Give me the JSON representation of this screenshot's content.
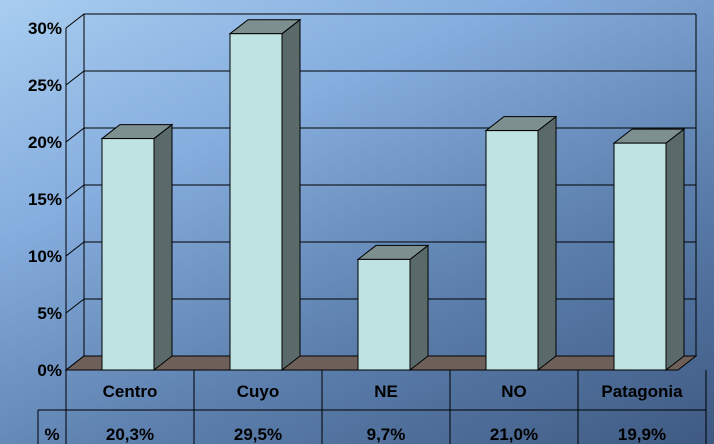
{
  "chart_data": {
    "type": "bar",
    "title": "",
    "xlabel": "",
    "ylabel": "",
    "categories": [
      "Centro",
      "Cuyo",
      "NE",
      "NO",
      "Patagonia"
    ],
    "values": [
      20.3,
      29.5,
      9.7,
      21.0,
      19.9
    ],
    "value_labels": [
      "20,3%",
      "29,5%",
      "9,7%",
      "21,0%",
      "19,9%"
    ],
    "ylim": [
      0,
      30
    ],
    "yticks": [
      0,
      5,
      10,
      15,
      20,
      25,
      30
    ],
    "ytick_labels": [
      "0%",
      "5%",
      "10%",
      "15%",
      "20%",
      "25%",
      "30%"
    ],
    "table_row_label": "%",
    "grid": true,
    "legend": "none",
    "style": "3d-column",
    "colors": {
      "bar_front": "#bfe3e3",
      "bar_side": "#5a6a6a",
      "bar_top": "#7d8f8f",
      "floor": "#6e6058",
      "grid": "#000000"
    }
  }
}
